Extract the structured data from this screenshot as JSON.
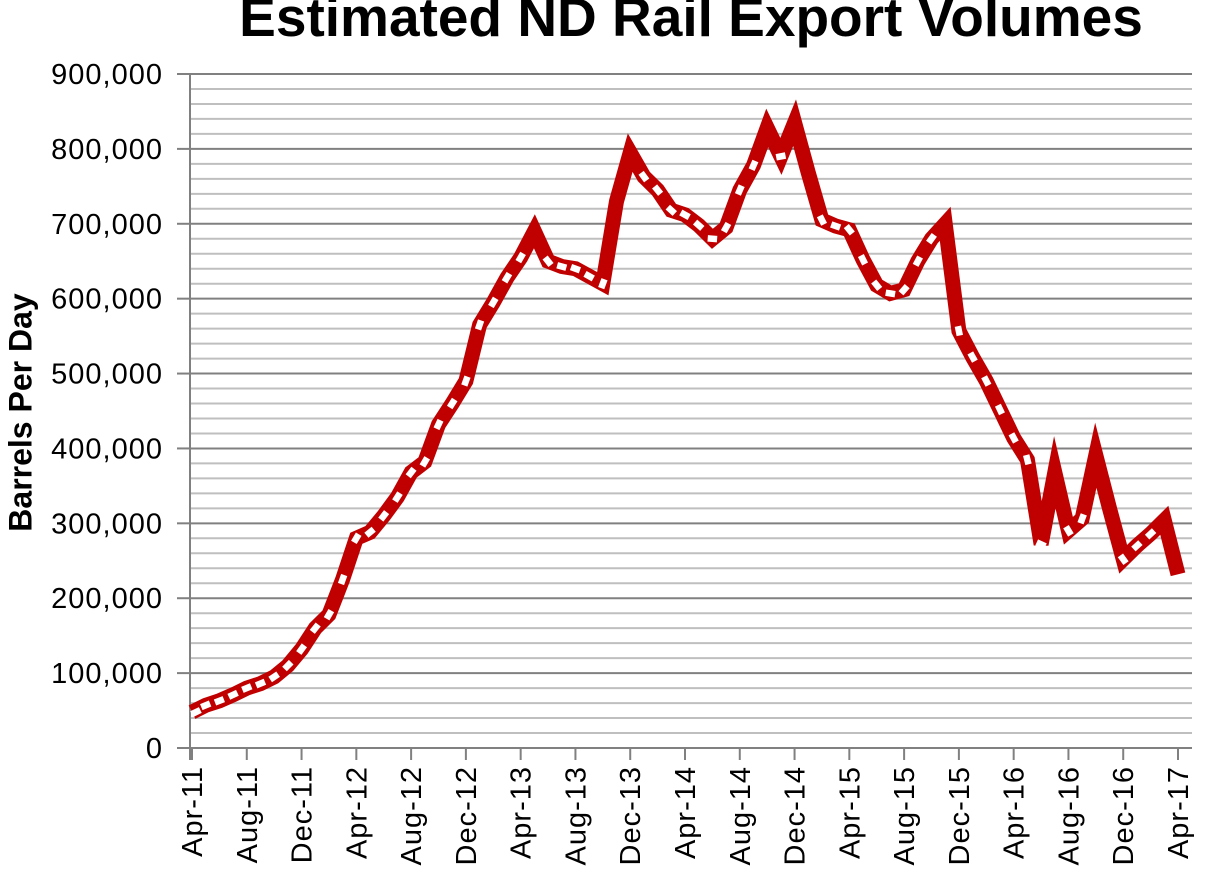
{
  "chart_data": {
    "type": "line",
    "title": "Estimated ND Rail Export Volumes",
    "ylabel": "Barrels Per Day",
    "xlabel": "",
    "ylim": [
      0,
      900000
    ],
    "y_tick_interval": 100000,
    "y_minor_tick_interval": 20000,
    "y_tick_labels": [
      "0",
      "100,000",
      "200,000",
      "300,000",
      "400,000",
      "500,000",
      "600,000",
      "700,000",
      "800,000",
      "900,000"
    ],
    "x_tick_labels": [
      "Apr-11",
      "Aug-11",
      "Dec-11",
      "Apr-12",
      "Aug-12",
      "Dec-12",
      "Apr-13",
      "Aug-13",
      "Dec-13",
      "Apr-14",
      "Aug-14",
      "Dec-14",
      "Apr-15",
      "Aug-15",
      "Dec-15",
      "Apr-16",
      "Aug-16",
      "Dec-16",
      "Apr-17"
    ],
    "x_tick_every_n_months": 4,
    "series_name": "Estimated ND rail export volume",
    "values": [
      48000,
      57000,
      63000,
      71000,
      80000,
      86000,
      95000,
      110000,
      132000,
      160000,
      178000,
      225000,
      280000,
      288000,
      310000,
      335000,
      368000,
      382000,
      432000,
      460000,
      490000,
      565000,
      595000,
      628000,
      655000,
      690000,
      650000,
      643000,
      640000,
      630000,
      620000,
      730000,
      795000,
      763000,
      745000,
      718000,
      712000,
      698000,
      680000,
      695000,
      745000,
      778000,
      828000,
      790000,
      835000,
      768000,
      705000,
      697000,
      692000,
      652000,
      618000,
      607000,
      612000,
      650000,
      680000,
      700000,
      557000,
      522000,
      490000,
      452000,
      414000,
      385000,
      272000,
      368000,
      290000,
      306000,
      391000,
      320000,
      252000,
      270000,
      286000,
      304000,
      232000
    ],
    "line_color": "#C00000",
    "marker_color": "#FFFFFF",
    "marker_style": "dash",
    "major_grid_color": "#808080",
    "minor_grid_color": "#BFBFBF",
    "axis_color": "#808080",
    "grid": "on",
    "legend": "none"
  }
}
